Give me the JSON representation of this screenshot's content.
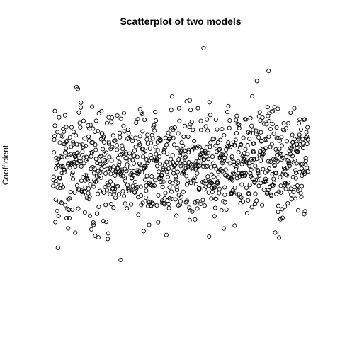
{
  "chart_data": {
    "type": "scatter",
    "title": "Scatterplot of two models",
    "xlabel": "",
    "ylabel": "Coefficient",
    "axes_shown": false,
    "grid": false,
    "legend": "none",
    "marker": "open-circle",
    "marker_color": "#000000",
    "xlim": [
      0,
      1000
    ],
    "ylim": [
      -4.3,
      4.3
    ],
    "generator": {
      "n_points": 1000,
      "seed": 20231,
      "sd": 0.95,
      "note_extremes": [
        {
          "x": 590,
          "y": 4.1
        },
        {
          "x": 265,
          "y": -3.35
        },
        {
          "x": 845,
          "y": 3.3
        }
      ]
    }
  }
}
